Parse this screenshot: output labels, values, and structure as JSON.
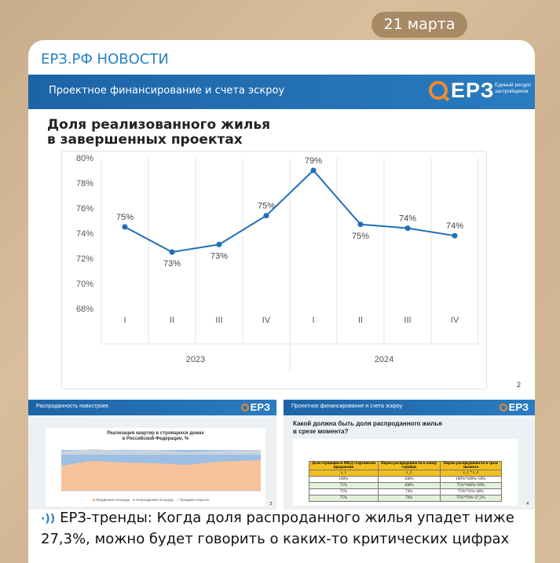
{
  "date": "21 марта",
  "channel": "ЕРЗ.РФ НОВОСТИ",
  "slide": {
    "banner_title": "Проектное финансирование и счета эскроу",
    "logo_text": "ЕРЗ",
    "logo_sub": "Единый ресурс застройщиков",
    "title_line1": "Доля реализованного жилья",
    "title_line2": "в завершенных проектах",
    "page": "2"
  },
  "chart_data": {
    "type": "line",
    "title": "Доля реализованного жилья в завершенных проектах",
    "categories": [
      "I",
      "II",
      "III",
      "IV",
      "I",
      "II",
      "III",
      "IV"
    ],
    "groups": [
      {
        "label": "2023",
        "span": [
          0,
          3
        ]
      },
      {
        "label": "2024",
        "span": [
          4,
          7
        ]
      }
    ],
    "values": [
      74.5,
      72.5,
      73.1,
      75.4,
      79.0,
      74.7,
      74.4,
      73.8
    ],
    "labels": [
      "75%",
      "73%",
      "73%",
      "75%",
      "79%",
      "75%",
      "74%",
      "74%"
    ],
    "yticks": [
      "80%",
      "78%",
      "76%",
      "74%",
      "72%",
      "70%",
      "68%"
    ],
    "ylim": [
      68,
      80
    ],
    "color": "#1f6fb8",
    "grid": true
  },
  "thumb_left": {
    "banner_title": "Распроданность новостроек",
    "logo_text": "ЕРЗ",
    "chart_title_1": "Реализация квартир в строящихся домах",
    "chart_title_2": "в Российской Федерации, %",
    "legend": [
      "Проданная площадь",
      "Непроданная площадь",
      "Продажи открыты"
    ],
    "page": "3"
  },
  "thumb_right": {
    "banner_title": "Проектное финансирование и счета эскроу",
    "logo_text": "ЕРЗ",
    "question_1": "Какой должна быть доля распроданного жилья",
    "question_2": "в срезе момента?",
    "table_headers": [
      "Доля строящихся МКД стартовыми продажами",
      "Норма распроданности к концу стройки",
      "Норма распроданности в срезе момента"
    ],
    "table_rows": [
      [
        "x_1",
        "x_2",
        "x_1 * x_2"
      ],
      [
        "100%",
        "100%",
        "100%*100%=50%"
      ],
      [
        "75%",
        "100%",
        "75%*100%=39%"
      ],
      [
        "75%",
        "74%",
        "75%*74%=28%"
      ],
      [
        "75%",
        "70%",
        "75%*70%=27,3%"
      ]
    ],
    "page": "4"
  },
  "caption": "ЕРЗ-тренды: Когда доля распроданного жилья упадет ниже 27,3%, можно будет говорить о каких-то критических цифрах",
  "speaker_icon": "speaker-icon"
}
